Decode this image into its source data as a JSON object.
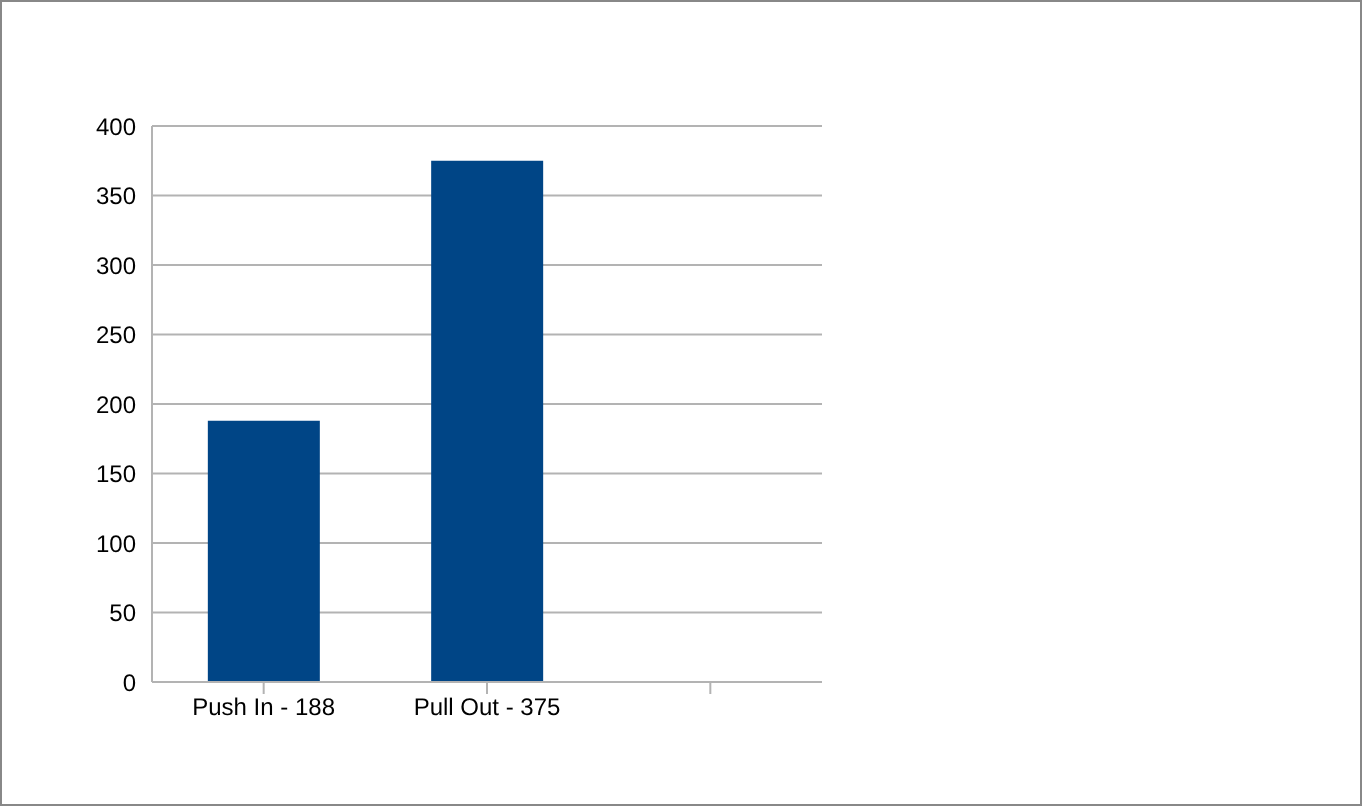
{
  "chart_data": {
    "type": "bar",
    "categories": [
      "Push In - 188",
      "Pull Out - 375",
      null
    ],
    "values": [
      188,
      375,
      null
    ],
    "color": "#004586",
    "ylim": [
      0,
      400
    ],
    "yticks": [
      0,
      50,
      100,
      150,
      200,
      250,
      300,
      350,
      400
    ],
    "grid": "y"
  }
}
